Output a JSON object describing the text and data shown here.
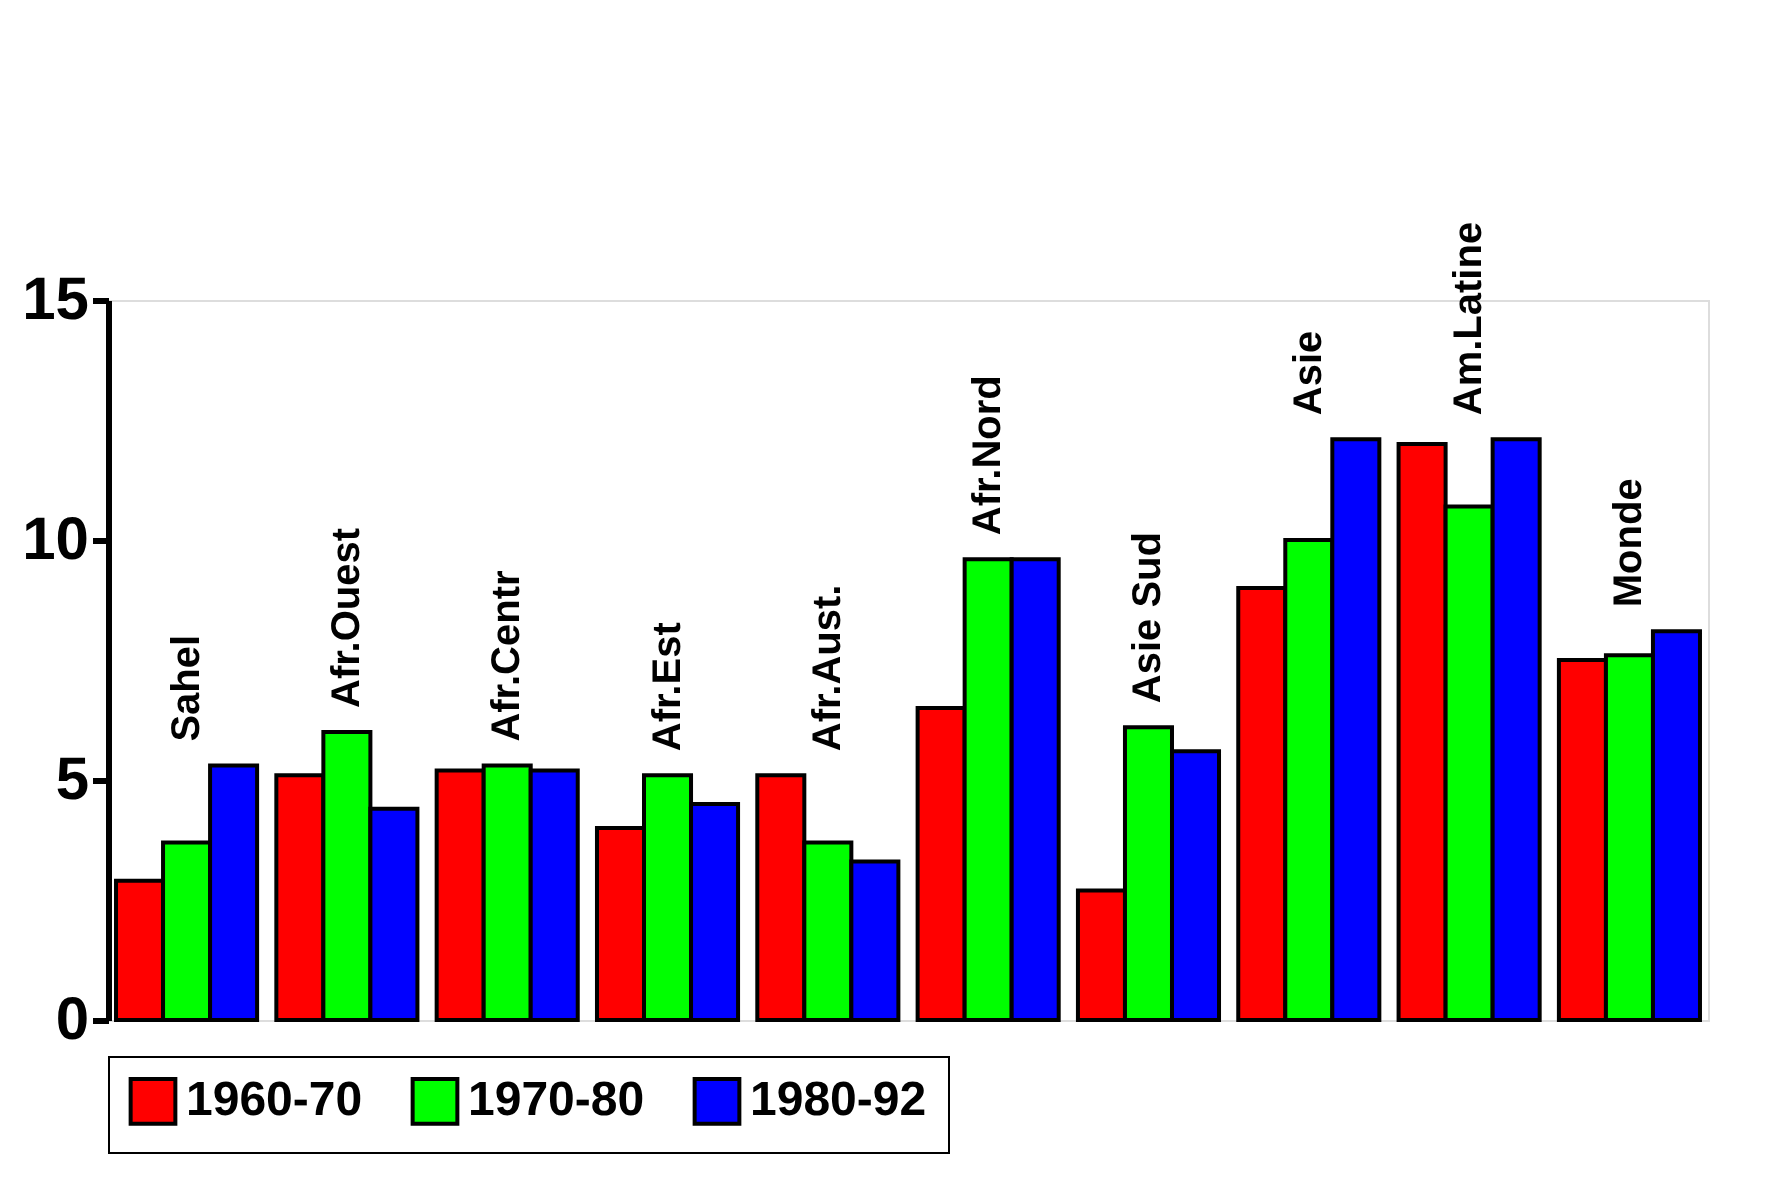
{
  "chart_data": {
    "type": "bar",
    "categories": [
      "Sahel",
      "Afr.Ouest",
      "Afr.Centr",
      "Afr.Est",
      "Afr.Aust.",
      "Afr.Nord",
      "Asie Sud",
      "Asie",
      "Am.Latine",
      "Monde"
    ],
    "series": [
      {
        "name": "1960-70",
        "color": "#ff0000",
        "values": [
          2.9,
          5.1,
          5.2,
          4.0,
          5.1,
          6.5,
          2.7,
          9.0,
          12.0,
          7.5
        ]
      },
      {
        "name": "1970-80",
        "color": "#00ff00",
        "values": [
          3.7,
          6.0,
          5.3,
          5.1,
          3.7,
          9.6,
          6.1,
          10.0,
          10.7,
          7.6
        ]
      },
      {
        "name": "1980-92",
        "color": "#0000ff",
        "values": [
          5.3,
          4.4,
          5.2,
          4.5,
          3.3,
          9.6,
          5.6,
          12.1,
          12.1,
          8.1
        ]
      }
    ],
    "ylim": [
      0,
      15
    ],
    "yticks": [
      0,
      5,
      10,
      15
    ],
    "grid": false,
    "legend": "bottom",
    "tick_labels": "y"
  }
}
